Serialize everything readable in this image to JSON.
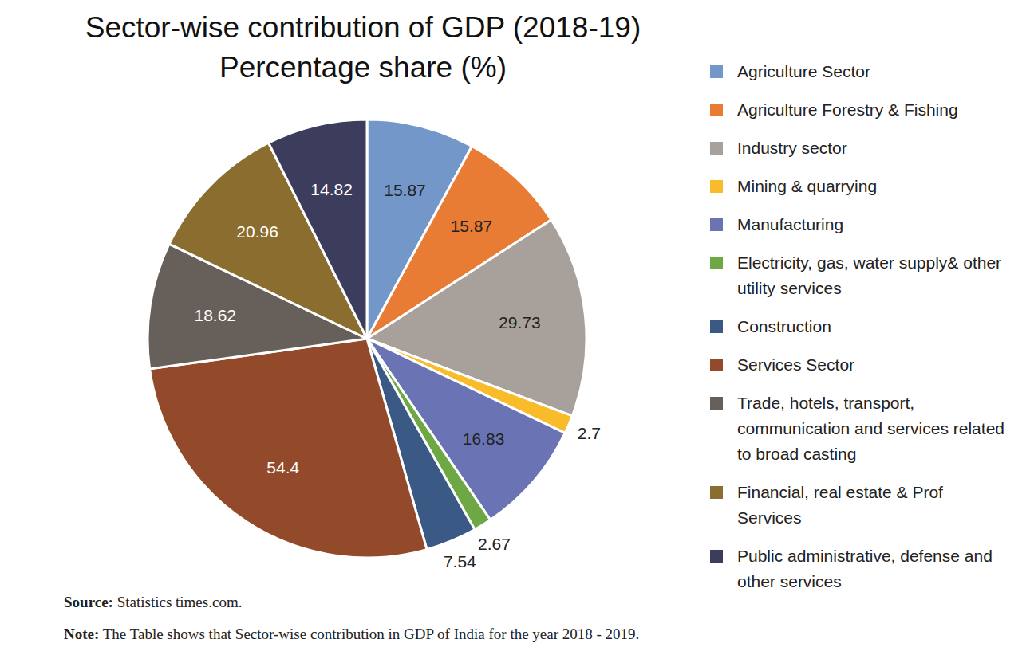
{
  "chart_data": {
    "type": "pie",
    "title": "Sector-wise contribution of GDP (2018-19)",
    "subtitle": "Percentage share (%)",
    "categories": [
      "Agriculture Sector",
      "Agriculture Forestry & Fishing",
      "Industry sector",
      "Mining & quarrying",
      "Manufacturing",
      "Electricity, gas, water supply& other utility services",
      "Construction",
      "Services Sector",
      "Trade, hotels, transport, communication and services related to broad casting",
      "Financial, real estate & Prof Services",
      "Public administrative, defense and other services"
    ],
    "values": [
      15.87,
      15.87,
      29.73,
      2.7,
      16.83,
      2.67,
      7.54,
      54.4,
      18.62,
      20.96,
      14.82
    ],
    "colors": [
      "#7397c9",
      "#e97c35",
      "#a8a19b",
      "#f8bc2b",
      "#6a74b4",
      "#6ea845",
      "#3a5a85",
      "#924a2a",
      "#67605a",
      "#8a6d2f",
      "#3c3c5c"
    ],
    "legend": "right",
    "data_labels": true,
    "source": "Source: Statistics times.com.",
    "note": "Note: The Table shows that Sector-wise contribution in GDP of India for the year 2018 - 2019."
  }
}
